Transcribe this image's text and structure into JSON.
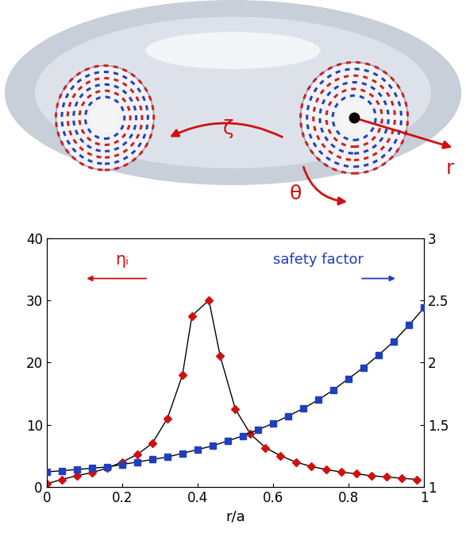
{
  "chart_data": {
    "type": "line",
    "xlabel": "r/a",
    "xlim": [
      0,
      1
    ],
    "xticks": [
      0,
      0.2,
      0.4,
      0.6,
      0.8,
      1
    ],
    "ylim": [
      0,
      40
    ],
    "yticks": [
      0,
      10,
      20,
      30,
      40
    ],
    "y2lim": [
      1,
      3
    ],
    "y2ticks": [
      1,
      1.5,
      2,
      2.5,
      3
    ],
    "series": [
      {
        "name": "ηᵢ",
        "color": "#d01010",
        "marker": "diamond",
        "x": [
          0,
          0.04,
          0.08,
          0.12,
          0.16,
          0.2,
          0.24,
          0.28,
          0.32,
          0.36,
          0.385,
          0.43,
          0.46,
          0.5,
          0.54,
          0.58,
          0.62,
          0.66,
          0.7,
          0.74,
          0.78,
          0.82,
          0.86,
          0.9,
          0.94,
          0.98
        ],
        "values": [
          0.5,
          1.2,
          1.8,
          2.3,
          3,
          4,
          5.2,
          7,
          11,
          18,
          27.5,
          30,
          21,
          12.5,
          8.5,
          6.3,
          5,
          4,
          3.3,
          2.8,
          2.4,
          2.1,
          1.8,
          1.6,
          1.4,
          1.2
        ]
      },
      {
        "name": "safety factor",
        "axis": "y2",
        "color": "#1f3fc0",
        "marker": "square",
        "x": [
          0,
          0.04,
          0.08,
          0.12,
          0.16,
          0.2,
          0.24,
          0.28,
          0.32,
          0.36,
          0.4,
          0.44,
          0.48,
          0.52,
          0.56,
          0.6,
          0.64,
          0.68,
          0.72,
          0.76,
          0.8,
          0.84,
          0.88,
          0.92,
          0.96,
          1
        ],
        "values": [
          1.12,
          1.13,
          1.14,
          1.15,
          1.16,
          1.18,
          1.2,
          1.22,
          1.24,
          1.27,
          1.3,
          1.33,
          1.37,
          1.41,
          1.46,
          1.51,
          1.57,
          1.63,
          1.7,
          1.78,
          1.87,
          1.96,
          2.06,
          2.17,
          2.3,
          2.44
        ]
      }
    ]
  },
  "illustration": {
    "labels": [
      "ζ",
      "θ",
      "r"
    ]
  }
}
